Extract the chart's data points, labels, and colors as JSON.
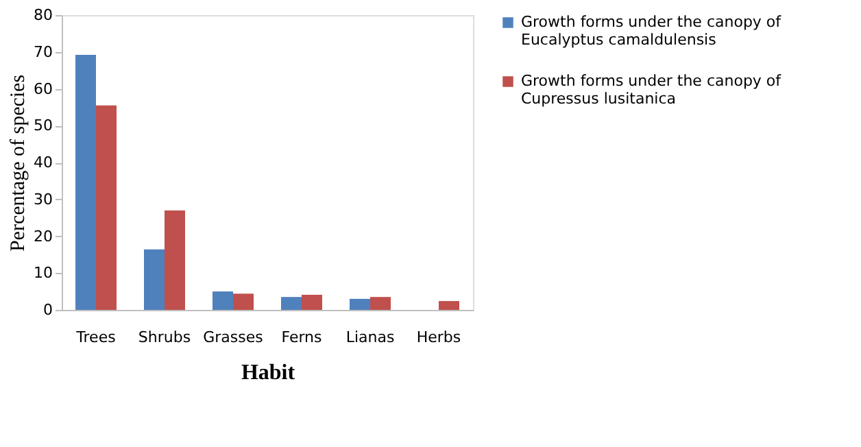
{
  "chart_data": {
    "type": "bar",
    "xlabel": "Habit",
    "ylabel": "Percentage of species",
    "categories": [
      "Trees",
      "Shrubs",
      "Grasses",
      "Ferns",
      "Lianas",
      "Herbs"
    ],
    "series": [
      {
        "name": "Growth forms under the canopy of Eucalyptus camaldulensis",
        "color": "#4f81bd",
        "values": [
          69.2,
          16.4,
          5.0,
          3.5,
          3.0,
          null
        ]
      },
      {
        "name": "Growth forms under the canopy of Cupressus lusitanica",
        "color": "#c0504d",
        "values": [
          55.5,
          27.0,
          4.4,
          4.1,
          3.5,
          2.4
        ]
      }
    ],
    "ylim": [
      0,
      80
    ],
    "yticks": [
      0,
      10,
      20,
      30,
      40,
      50,
      60,
      70,
      80
    ],
    "grid": false,
    "legend": "right"
  }
}
